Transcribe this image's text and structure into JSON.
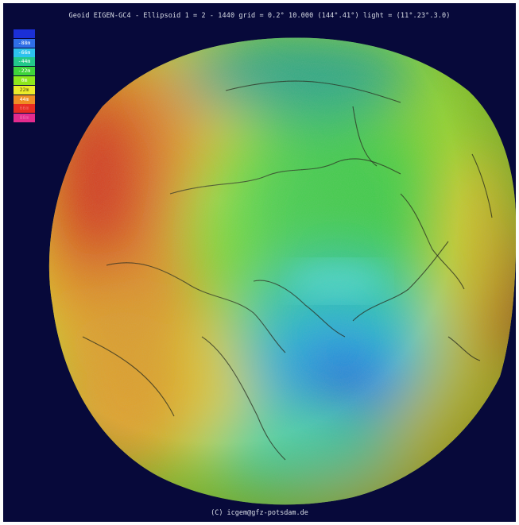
{
  "header": {
    "title": "Geoid EIGEN-GC4 - Ellipsoid 1 = 2 - 1440 grid = 0.2° 10.000 (144°.41°) light = (11°.23°.3.0)"
  },
  "legend": {
    "items": [
      {
        "label": "",
        "color": "#1b2fd6",
        "text_color": "#ffffff"
      },
      {
        "label": "-88m",
        "color": "#2f6ee8",
        "text_color": "#ffffff"
      },
      {
        "label": "-66m",
        "color": "#2cc2ee",
        "text_color": "#ffffff"
      },
      {
        "label": "-44m",
        "color": "#22c98a",
        "text_color": "#ffffff"
      },
      {
        "label": "-22m",
        "color": "#3ed43a",
        "text_color": "#ffffff"
      },
      {
        "label": "0m",
        "color": "#8ee81c",
        "text_color": "#ffffff"
      },
      {
        "label": "22m",
        "color": "#ecec2a",
        "text_color": "#505010"
      },
      {
        "label": "44m",
        "color": "#ef8d24",
        "text_color": "#ffffff"
      },
      {
        "label": "66m",
        "color": "#e82c22",
        "text_color": "#f26a6a"
      },
      {
        "label": "88m",
        "color": "#e32b8e",
        "text_color": "#f06ab0"
      }
    ]
  },
  "footer": {
    "credit": "(C) icgem@gfz-potsdam.de"
  }
}
